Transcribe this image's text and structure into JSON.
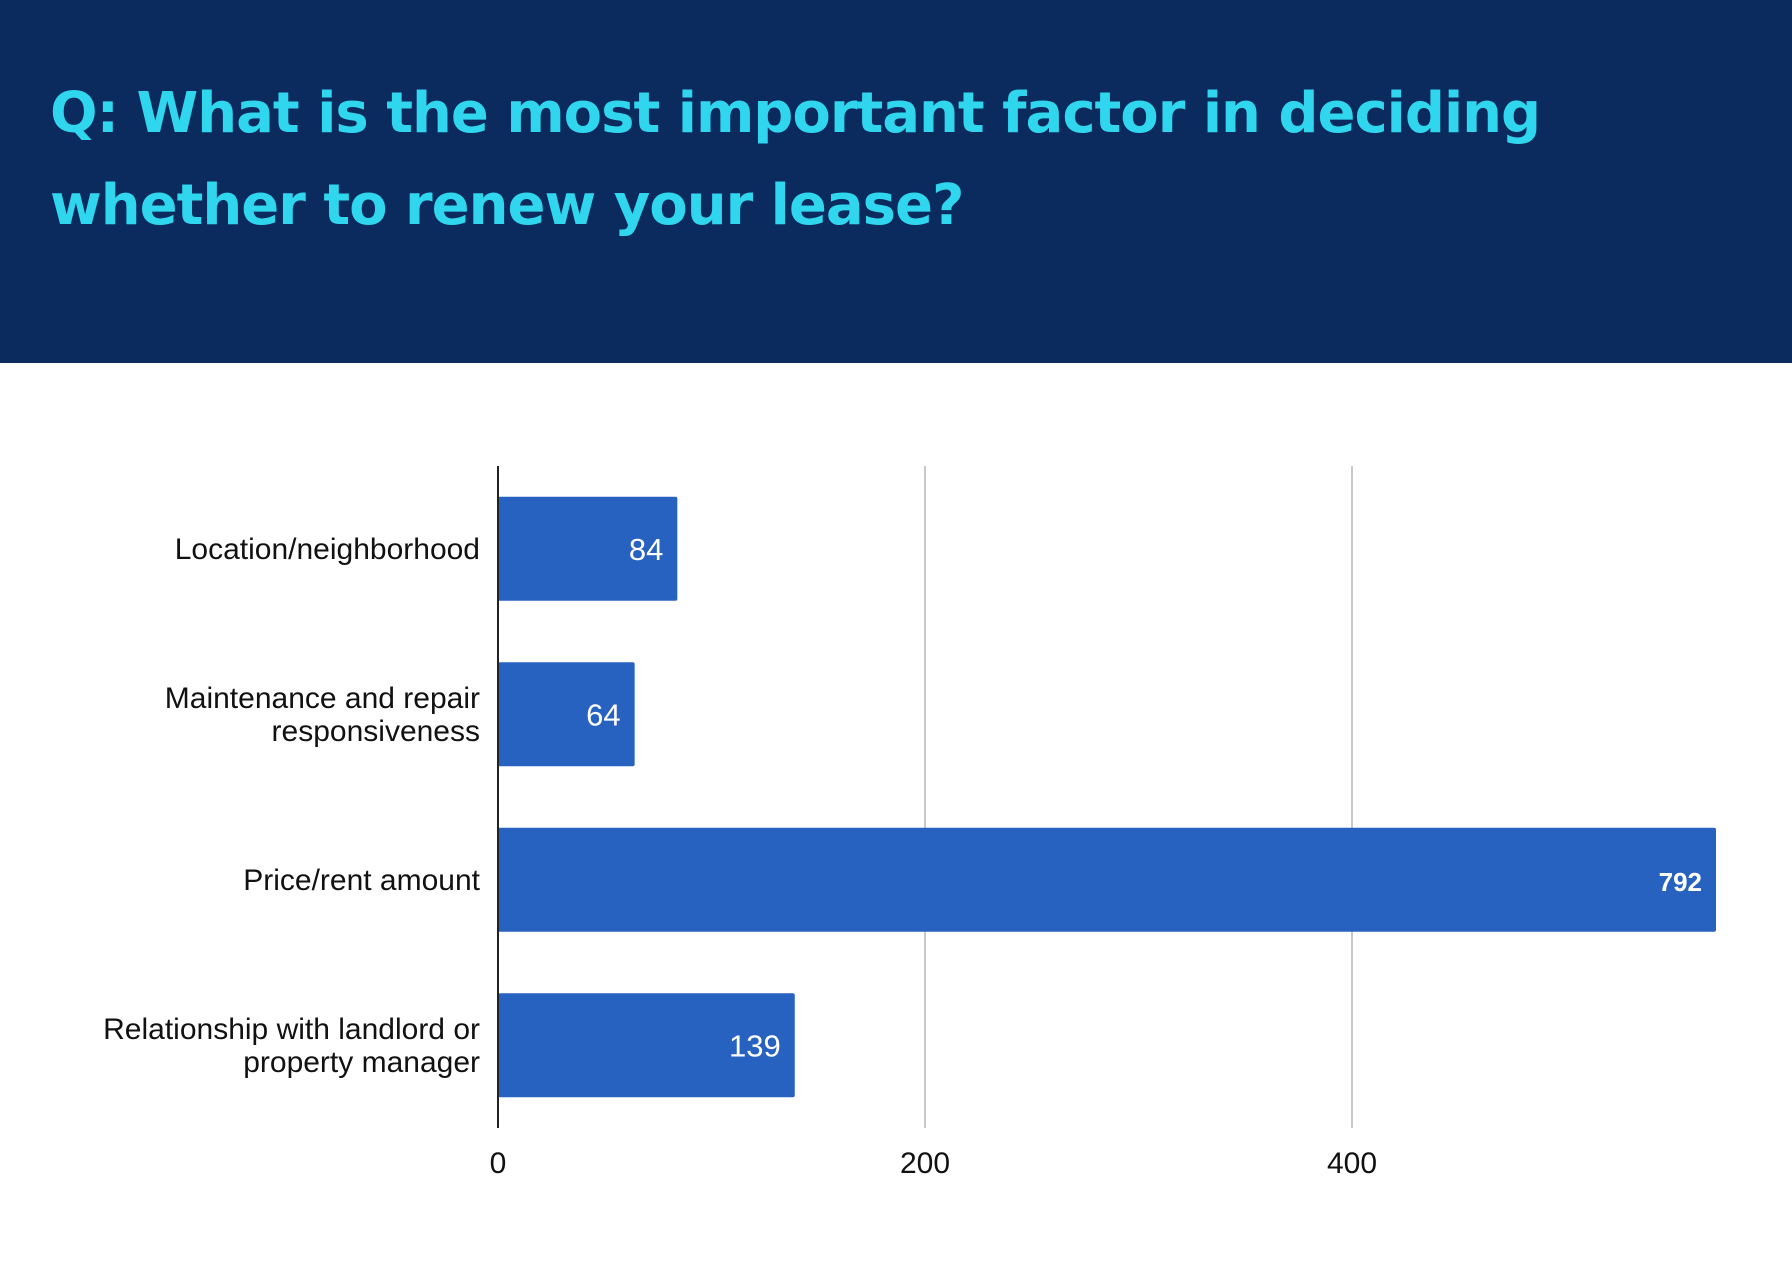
{
  "header": {
    "title": "Q: What is the most important factor in deciding whether to renew your lease?"
  },
  "colors": {
    "header_bg": "#0b2a5e",
    "title_text": "#2fd6ee",
    "bar": "#2862c0",
    "grid": "#c8c8c8",
    "axis": "#222222"
  },
  "chart_data": {
    "type": "bar",
    "orientation": "horizontal",
    "title": "Q: What is the most important factor in deciding whether to renew your lease?",
    "categories": [
      [
        "Location/neighborhood"
      ],
      [
        "Maintenance and repair",
        "responsiveness"
      ],
      [
        "Price/rent amount"
      ],
      [
        "Relationship with landlord or",
        "property manager"
      ]
    ],
    "values": [
      84,
      64,
      792,
      139
    ],
    "value_labels": [
      "84",
      "64",
      "792",
      "139"
    ],
    "xlim": [
      0,
      572
    ],
    "xticks": [
      0,
      200,
      400
    ],
    "xlabel": "",
    "ylabel": "",
    "grid": true,
    "legend": "none"
  }
}
